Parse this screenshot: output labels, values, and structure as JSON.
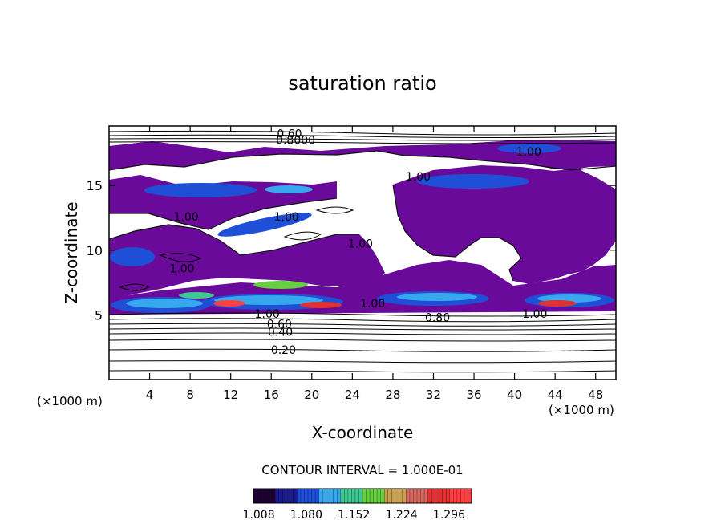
{
  "chart_data": {
    "type": "heatmap",
    "title": "saturation ratio",
    "xlabel": "X-coordinate",
    "ylabel": "Z-coordinate",
    "x_unit_left": "(×1000 m)",
    "x_unit_right": "(×1000 m)",
    "xlim": [
      0,
      50
    ],
    "ylim": [
      0,
      19.6
    ],
    "x_ticks": [
      4,
      8,
      12,
      16,
      20,
      24,
      28,
      32,
      36,
      40,
      44,
      48
    ],
    "x_tick_labels": [
      "4",
      "8",
      "12",
      "16",
      "20",
      "24",
      "28",
      "32",
      "36",
      "40",
      "44",
      "48"
    ],
    "y_ticks": [
      5,
      10,
      15
    ],
    "y_tick_labels": [
      "5",
      "10",
      "15"
    ],
    "grid": false,
    "contour_interval_text": "CONTOUR INTERVAL = 1.000E-01",
    "colorbar": {
      "range": [
        1.0,
        1.33
      ],
      "tick_values": [
        1.008,
        1.08,
        1.152,
        1.224,
        1.296
      ],
      "tick_labels": [
        "1.008",
        "1.080",
        "1.152",
        "1.224",
        "1.296"
      ],
      "colors": [
        "#1e0032",
        "#1a1a8c",
        "#1f4fd6",
        "#38a8ee",
        "#3fc890",
        "#66d040",
        "#c8a050",
        "#d66a60",
        "#e03030",
        "#ff4040"
      ]
    },
    "contour_labels": [
      {
        "text": "0.60",
        "x": 17.8,
        "y": 19.0
      },
      {
        "text": "0.8000",
        "x": 18.4,
        "y": 18.5
      },
      {
        "text": "1.00",
        "x": 41.4,
        "y": 17.6
      },
      {
        "text": "1.00",
        "x": 30.5,
        "y": 15.7
      },
      {
        "text": "1.00",
        "x": 7.6,
        "y": 12.6
      },
      {
        "text": "1.00",
        "x": 17.5,
        "y": 12.6
      },
      {
        "text": "1.00",
        "x": 24.8,
        "y": 10.5
      },
      {
        "text": "1.00",
        "x": 7.2,
        "y": 8.6
      },
      {
        "text": "1.00",
        "x": 26.0,
        "y": 5.9
      },
      {
        "text": "1.00",
        "x": 15.6,
        "y": 5.1
      },
      {
        "text": "1.00",
        "x": 42.0,
        "y": 5.1
      },
      {
        "text": "0.80",
        "x": 32.4,
        "y": 4.8
      },
      {
        "text": "0.60",
        "x": 16.8,
        "y": 4.3
      },
      {
        "text": "0.40",
        "x": 16.9,
        "y": 3.7
      },
      {
        "text": "0.20",
        "x": 17.2,
        "y": 2.3
      }
    ]
  }
}
